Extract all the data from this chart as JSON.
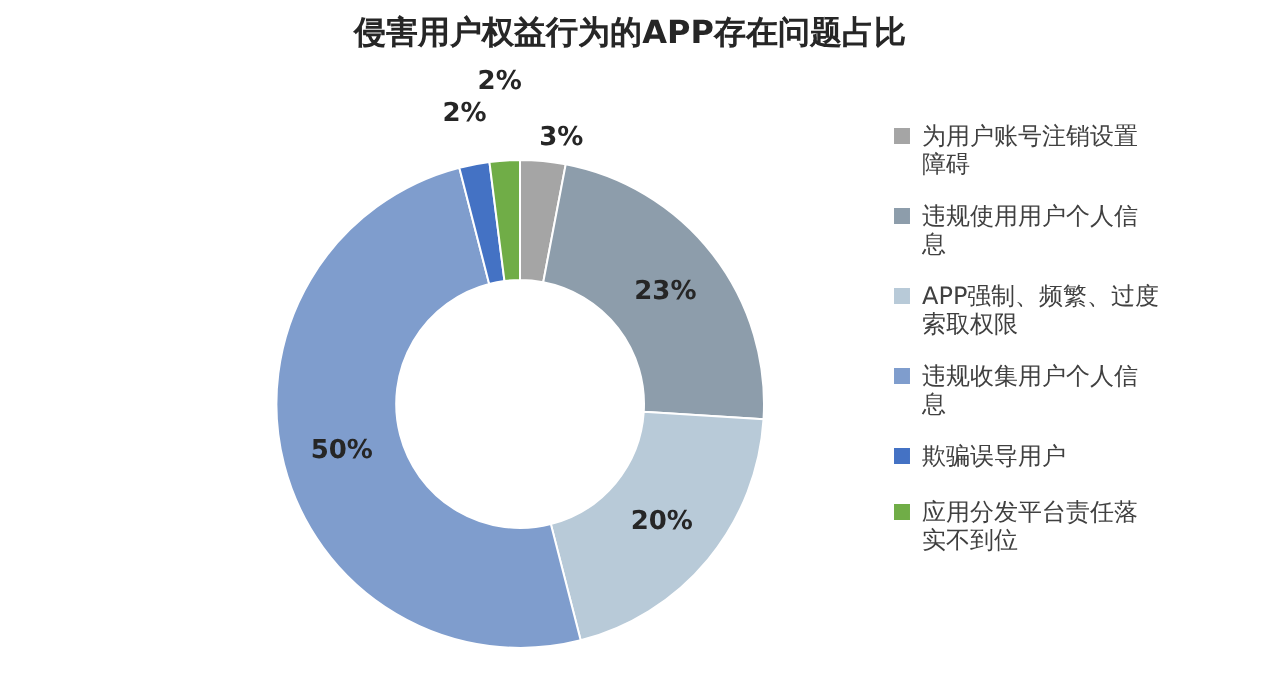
{
  "chart_data": {
    "type": "donut",
    "title": "侵害用户权益行为的APP存在问题占比",
    "categories": [
      "为用户账号注销设置障碍",
      "违规使用用户个人信息",
      "APP强制、频繁、过度索取权限",
      "违规收集用户个人信息",
      "欺骗误导用户",
      "应用分发平台责任落实不到位"
    ],
    "values": [
      3,
      23,
      20,
      50,
      2,
      2
    ],
    "colors": [
      "#a5a5a5",
      "#8d9dab",
      "#b8cad8",
      "#7f9dcd",
      "#4472c4",
      "#70ad47"
    ],
    "value_labels": [
      "3%",
      "23%",
      "20%",
      "50%",
      "2%",
      "2%"
    ],
    "legend": "right"
  }
}
